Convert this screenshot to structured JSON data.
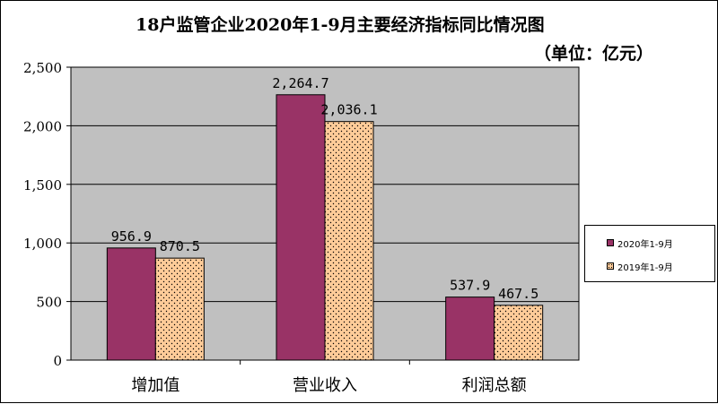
{
  "chart_data": {
    "type": "bar",
    "title": "18户监管企业2020年1-9月主要经济指标同比情况图",
    "subtitle": "（单位：亿元）",
    "categories": [
      "增加值",
      "营业收入",
      "利润总额"
    ],
    "series": [
      {
        "name": "2020年1-9月",
        "values": [
          956.9,
          2264.7,
          537.9
        ],
        "value_labels": [
          "956.9",
          "2,264.7",
          "537.9"
        ],
        "color": "#993366"
      },
      {
        "name": "2019年1-9月",
        "values": [
          870.5,
          2036.1,
          467.5
        ],
        "value_labels": [
          "870.5",
          "2,036.1",
          "467.5"
        ],
        "color": "#ffcc99"
      }
    ],
    "ylim": [
      0,
      2500
    ],
    "yticks": [
      0,
      500,
      1000,
      1500,
      2000,
      2500
    ],
    "ytick_labels": [
      "0",
      "500",
      "1,000",
      "1,500",
      "2,000",
      "2,500"
    ],
    "grid": true,
    "legend": "right",
    "plot_background": "#c0c0c0"
  }
}
